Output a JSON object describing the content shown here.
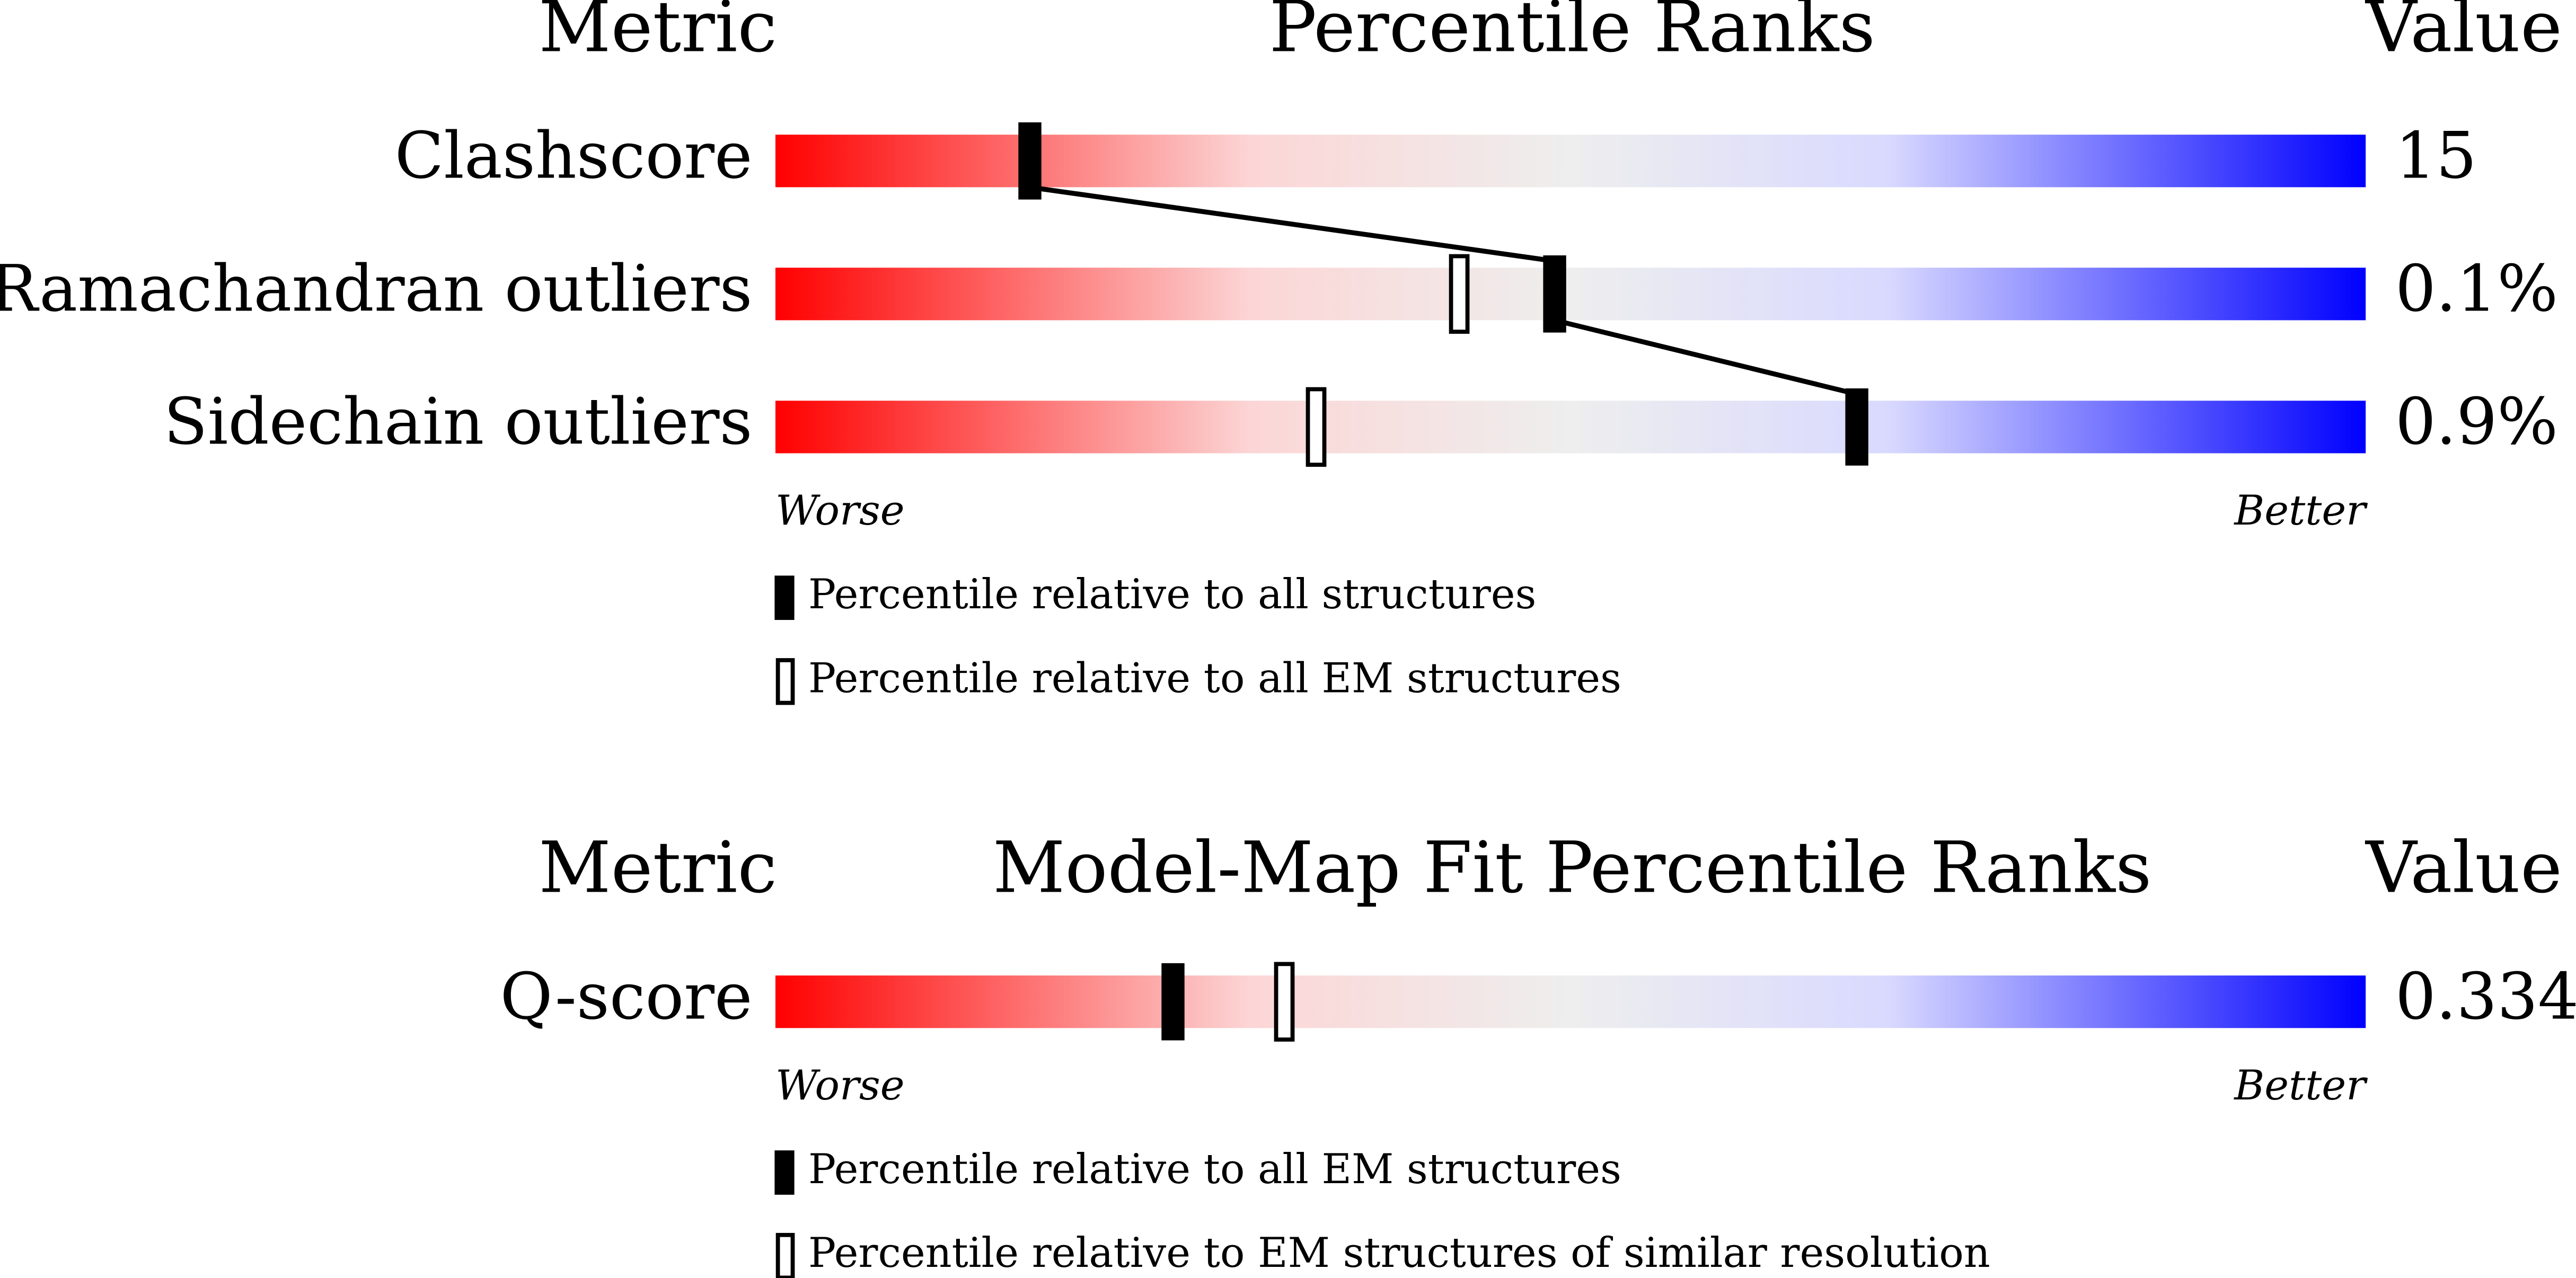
{
  "chart_data": [
    {
      "type": "percentile-slider",
      "metric_header": "Metric",
      "title": "Percentile Ranks",
      "value_header": "Value",
      "categories": [
        "Clashscore",
        "Ramachandran outliers",
        "Sidechain outliers"
      ],
      "values": [
        15,
        0.1,
        0.9
      ],
      "value_labels": [
        "15",
        "0.1%",
        "0.9%"
      ],
      "xlim": [
        0,
        100
      ],
      "worse_label": "Worse",
      "better_label": "Better",
      "series": [
        {
          "name": "Percentile relative to all structures",
          "color": "#000000",
          "values": [
            16,
            49,
            68
          ]
        },
        {
          "name": "Percentile relative to all EM structures",
          "color": "#ffffff",
          "values": [
            null,
            43,
            34
          ]
        }
      ]
    },
    {
      "type": "percentile-slider",
      "metric_header": "Metric",
      "title": "Model-Map Fit Percentile Ranks",
      "value_header": "Value",
      "categories": [
        "Q-score"
      ],
      "values": [
        0.334
      ],
      "value_labels": [
        "0.334"
      ],
      "xlim": [
        0,
        100
      ],
      "worse_label": "Worse",
      "better_label": "Better",
      "series": [
        {
          "name": "Percentile relative to all EM structures",
          "color": "#000000",
          "values": [
            25
          ]
        },
        {
          "name": "Percentile relative to EM structures of similar resolution",
          "color": "#ffffff",
          "values": [
            32
          ]
        }
      ]
    }
  ]
}
